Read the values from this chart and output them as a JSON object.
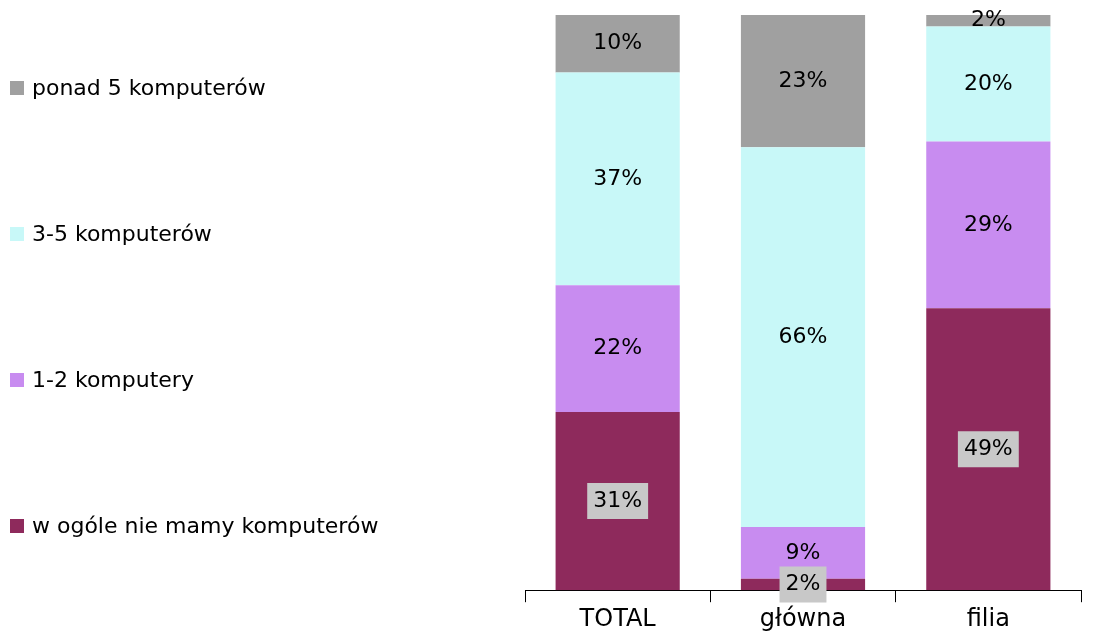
{
  "chart_data": {
    "type": "bar",
    "stacked": true,
    "legend": "left",
    "categories": [
      "TOTAL",
      "główna",
      "filia"
    ],
    "series": [
      {
        "name": "w ogóle nie mamy komputerów",
        "color": "#8e2a5c",
        "values": [
          31,
          2,
          49
        ],
        "value_labels": [
          "31%",
          "2%",
          "49%"
        ]
      },
      {
        "name": "1-2 komputery",
        "color": "#c88cf0",
        "values": [
          22,
          9,
          29
        ],
        "value_labels": [
          "22%",
          "9%",
          "29%"
        ]
      },
      {
        "name": "3-5 komputerów",
        "color": "#c8f8f8",
        "values": [
          37,
          66,
          20
        ],
        "value_labels": [
          "37%",
          "66%",
          "20%"
        ]
      },
      {
        "name": "ponad 5 komputerów",
        "color": "#a0a0a0",
        "values": [
          10,
          23,
          2
        ],
        "value_labels": [
          "10%",
          "23%",
          "2%"
        ]
      }
    ]
  }
}
